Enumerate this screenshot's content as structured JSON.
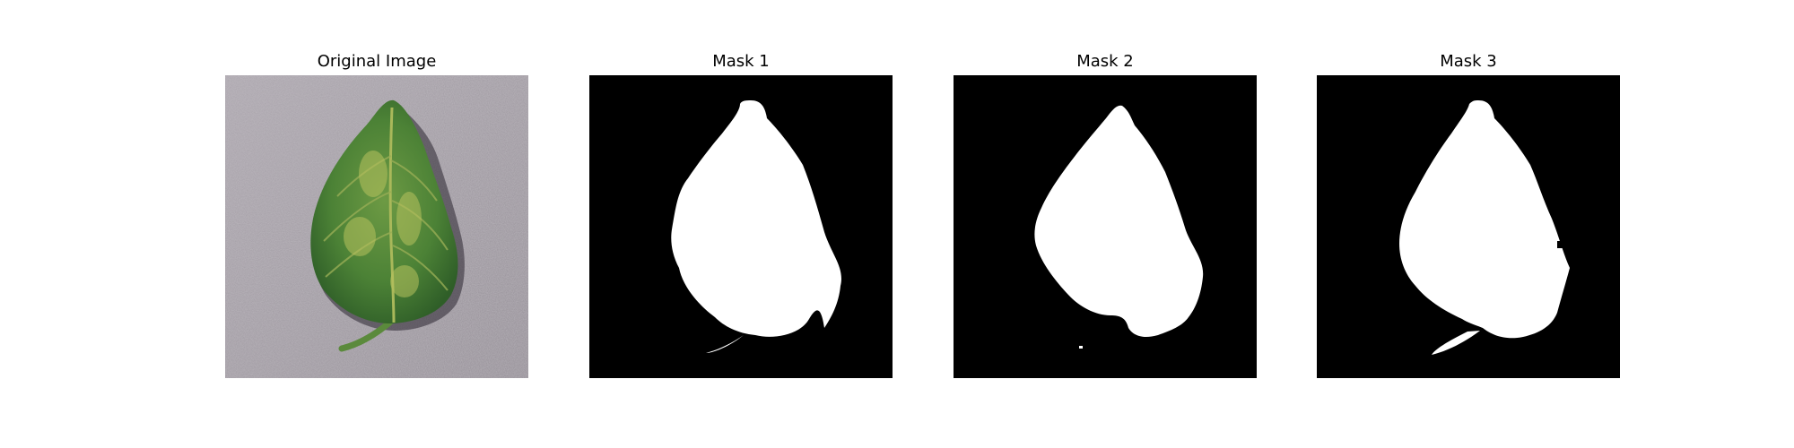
{
  "panels": [
    {
      "title": "Original Image",
      "kind": "photo"
    },
    {
      "title": "Mask 1",
      "kind": "mask"
    },
    {
      "title": "Mask 2",
      "kind": "mask"
    },
    {
      "title": "Mask 3",
      "kind": "mask"
    }
  ],
  "colors": {
    "background": "#ffffff",
    "mask_background": "#000000",
    "mask_foreground": "#ffffff",
    "photo_surface": "#a09aa2",
    "leaf_dark": "#2f5e28",
    "leaf_mid": "#4f8a3a",
    "leaf_light": "#9fb64e"
  }
}
